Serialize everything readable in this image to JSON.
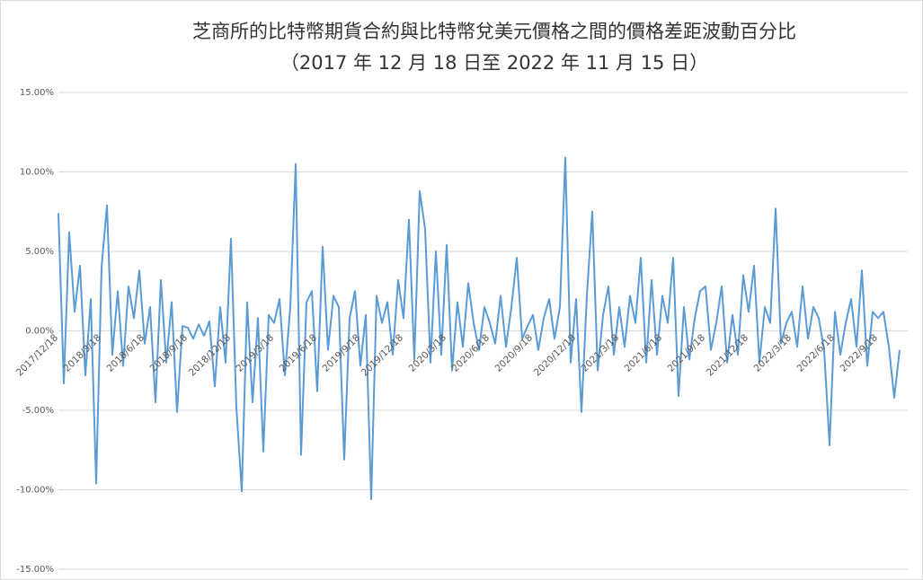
{
  "chart_data": {
    "type": "line",
    "title": "芝商所的比特幣期貨合約與比特幣兌美元價格之間的價格差距波動百分比",
    "subtitle": "（2017 年 12 月 18 日至 2022 年 11 月 15 日）",
    "color": "#5b9bd5",
    "grid": true,
    "ylim": [
      -15,
      15
    ],
    "yticks": [
      {
        "value": -15,
        "label": "-15.00%"
      },
      {
        "value": -10,
        "label": "-10.00%"
      },
      {
        "value": -5,
        "label": "-5.00%"
      },
      {
        "value": 0,
        "label": "0.00%"
      },
      {
        "value": 5,
        "label": "5.00%"
      },
      {
        "value": 10,
        "label": "10.00%"
      },
      {
        "value": 15,
        "label": "15.00%"
      }
    ],
    "categories": [
      "2017/12/18",
      null,
      null,
      null,
      null,
      null,
      null,
      null,
      "2018/3/18",
      null,
      null,
      null,
      null,
      null,
      null,
      null,
      "2018/6/18",
      null,
      null,
      null,
      null,
      null,
      null,
      null,
      "2018/9/18",
      null,
      null,
      null,
      null,
      null,
      null,
      null,
      "2018/12/18",
      null,
      null,
      null,
      null,
      null,
      null,
      null,
      "2019/3/18",
      null,
      null,
      null,
      null,
      null,
      null,
      null,
      "2019/6/18",
      null,
      null,
      null,
      null,
      null,
      null,
      null,
      "2019/9/18",
      null,
      null,
      null,
      null,
      null,
      null,
      null,
      "2019/12/18",
      null,
      null,
      null,
      null,
      null,
      null,
      null,
      "2020/3/18",
      null,
      null,
      null,
      null,
      null,
      null,
      null,
      "2020/6/18",
      null,
      null,
      null,
      null,
      null,
      null,
      null,
      "2020/9/18",
      null,
      null,
      null,
      null,
      null,
      null,
      null,
      "2020/12/18",
      null,
      null,
      null,
      null,
      null,
      null,
      null,
      "2021/3/18",
      null,
      null,
      null,
      null,
      null,
      null,
      null,
      "2021/6/18",
      null,
      null,
      null,
      null,
      null,
      null,
      null,
      "2021/9/18",
      null,
      null,
      null,
      null,
      null,
      null,
      null,
      "2021/12/18",
      null,
      null,
      null,
      null,
      null,
      null,
      null,
      "2022/3/18",
      null,
      null,
      null,
      null,
      null,
      null,
      null,
      "2022/6/18",
      null,
      null,
      null,
      null,
      null,
      null,
      null,
      "2022/9/18",
      null,
      null,
      null,
      null
    ],
    "values": [
      7.4,
      -3.3,
      6.2,
      1.2,
      4.1,
      -2.8,
      2.0,
      -9.6,
      4.0,
      7.9,
      -1.5,
      2.5,
      -2.2,
      2.8,
      0.8,
      3.8,
      -0.8,
      1.5,
      -4.5,
      3.2,
      -2.0,
      1.8,
      -5.1,
      0.3,
      0.2,
      -0.5,
      0.4,
      -0.3,
      0.6,
      -3.5,
      1.5,
      -2.0,
      5.8,
      -4.8,
      -10.1,
      1.8,
      -4.5,
      0.8,
      -7.6,
      1.0,
      0.5,
      2.0,
      -2.8,
      1.5,
      10.5,
      -7.8,
      1.8,
      2.5,
      -3.8,
      5.3,
      -1.2,
      2.2,
      1.5,
      -8.1,
      0.8,
      2.5,
      -2.2,
      1.0,
      -10.6,
      2.2,
      0.5,
      1.8,
      -1.5,
      3.2,
      0.8,
      7.0,
      -1.8,
      8.8,
      6.4,
      -2.0,
      5.0,
      -1.5,
      5.4,
      -2.5,
      1.8,
      -1.0,
      3.0,
      0.5,
      -1.2,
      1.5,
      0.5,
      -0.8,
      2.2,
      -1.0,
      1.5,
      4.6,
      -0.5,
      0.3,
      1.0,
      -1.2,
      0.8,
      2.0,
      -0.5,
      1.5,
      10.9,
      -2.0,
      2.0,
      -5.1,
      2.2,
      7.5,
      -2.5,
      1.0,
      2.8,
      -1.5,
      1.5,
      -1.0,
      2.2,
      0.5,
      4.6,
      -2.0,
      3.2,
      -1.5,
      2.2,
      0.5,
      4.6,
      -4.1,
      1.5,
      -1.8,
      0.8,
      2.5,
      2.8,
      -1.2,
      0.5,
      2.8,
      -2.0,
      1.0,
      -1.5,
      3.5,
      1.2,
      4.1,
      -2.0,
      1.5,
      0.5,
      7.7,
      -0.8,
      0.5,
      1.2,
      -1.0,
      2.8,
      -0.5,
      1.5,
      0.8,
      -1.2,
      -7.2,
      1.2,
      -1.5,
      0.5,
      2.0,
      -1.0,
      3.8,
      -2.2,
      1.2,
      0.8,
      1.2,
      -1.0,
      -4.2,
      -1.2
    ]
  }
}
